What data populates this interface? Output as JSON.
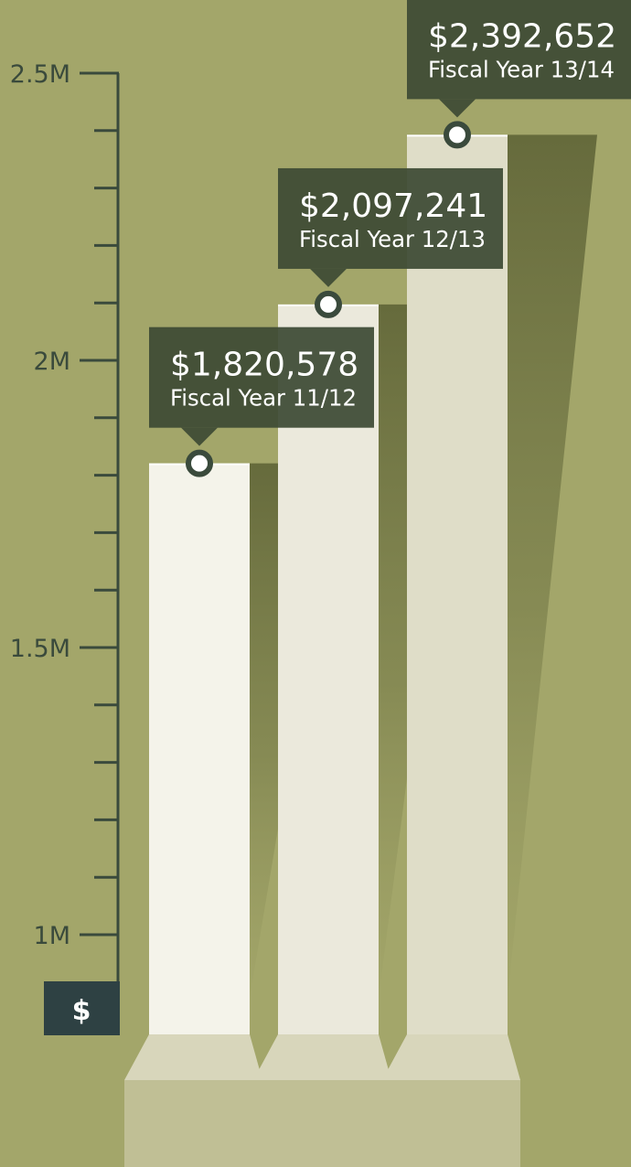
{
  "chart_data": {
    "type": "bar",
    "title": "",
    "xlabel": "",
    "ylabel": "",
    "ylim": [
      850000,
      2500000
    ],
    "y_tick_labels": [
      {
        "value": 2500000,
        "label": "2.5M"
      },
      {
        "value": 2000000,
        "label": "2M"
      },
      {
        "value": 1500000,
        "label": "1.5M"
      },
      {
        "value": 1000000,
        "label": "1M"
      }
    ],
    "y_minor_tick_step": 100000,
    "axis_badge": "$",
    "categories": [
      "Fiscal Year 11/12",
      "Fiscal Year 12/13",
      "Fiscal Year 13/14"
    ],
    "values": [
      1820578,
      2097241,
      2392652
    ],
    "value_labels": [
      "$1,820,578",
      "$2,097,241",
      "$2,392,652"
    ],
    "grid": false,
    "legend": "none"
  },
  "colors": {
    "background": "#a3a66a",
    "axis": "#3a4a3c",
    "tooltip": "#3d4a35",
    "bar_faces": [
      "#f4f3ea",
      "#ebe9dc",
      "#dfddc8"
    ],
    "pedestal_top": "#d8d6bb",
    "pedestal_front": "#c0bf95",
    "badge": "#2e4143"
  }
}
